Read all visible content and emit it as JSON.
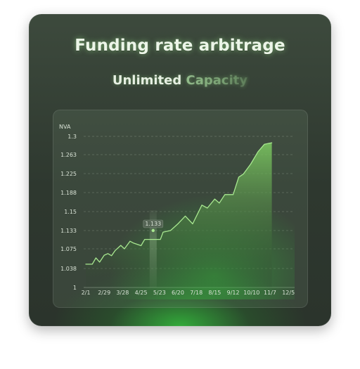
{
  "header": {
    "title": "Funding rate arbitrage",
    "subtitle_part1": "Unlimited",
    "subtitle_part2": "Capacity"
  },
  "colors": {
    "line": "#a8e890",
    "area_top": "#7ecb62",
    "glow": "#34be3c"
  },
  "chart_data": {
    "type": "area",
    "ylabel": "NVA",
    "y_ticks": [
      "1",
      "1.038",
      "1.075",
      "1.133",
      "1.15",
      "1.188",
      "1.225",
      "1.263",
      "1.3"
    ],
    "x_ticks": [
      "2/1",
      "2/29",
      "3/28",
      "4/25",
      "5/23",
      "6/20",
      "7/18",
      "8/15",
      "9/12",
      "10/10",
      "11/7",
      "12/5"
    ],
    "grid": true,
    "tooltip": {
      "label": "1.133",
      "x_category": "5/23"
    },
    "series": [
      {
        "points": [
          [
            0.0,
            1.046
          ],
          [
            0.35,
            1.046
          ],
          [
            0.55,
            1.058
          ],
          [
            0.75,
            1.05
          ],
          [
            1.0,
            1.063
          ],
          [
            1.2,
            1.066
          ],
          [
            1.4,
            1.062
          ],
          [
            1.6,
            1.072
          ],
          [
            1.9,
            1.086
          ],
          [
            2.1,
            1.075
          ],
          [
            2.4,
            1.099
          ],
          [
            2.6,
            1.093
          ],
          [
            3.0,
            1.085
          ],
          [
            3.2,
            1.105
          ],
          [
            3.7,
            1.105
          ],
          [
            4.05,
            1.105
          ],
          [
            4.2,
            1.128
          ],
          [
            4.6,
            1.133
          ],
          [
            5.0,
            1.139
          ],
          [
            5.4,
            1.146
          ],
          [
            5.8,
            1.139
          ],
          [
            6.3,
            1.163
          ],
          [
            6.6,
            1.157
          ],
          [
            7.0,
            1.175
          ],
          [
            7.25,
            1.167
          ],
          [
            7.55,
            1.184
          ],
          [
            8.0,
            1.184
          ],
          [
            8.3,
            1.218
          ],
          [
            8.55,
            1.224
          ],
          [
            8.95,
            1.244
          ],
          [
            9.35,
            1.269
          ],
          [
            9.7,
            1.284
          ],
          [
            10.1,
            1.287
          ]
        ]
      }
    ]
  }
}
